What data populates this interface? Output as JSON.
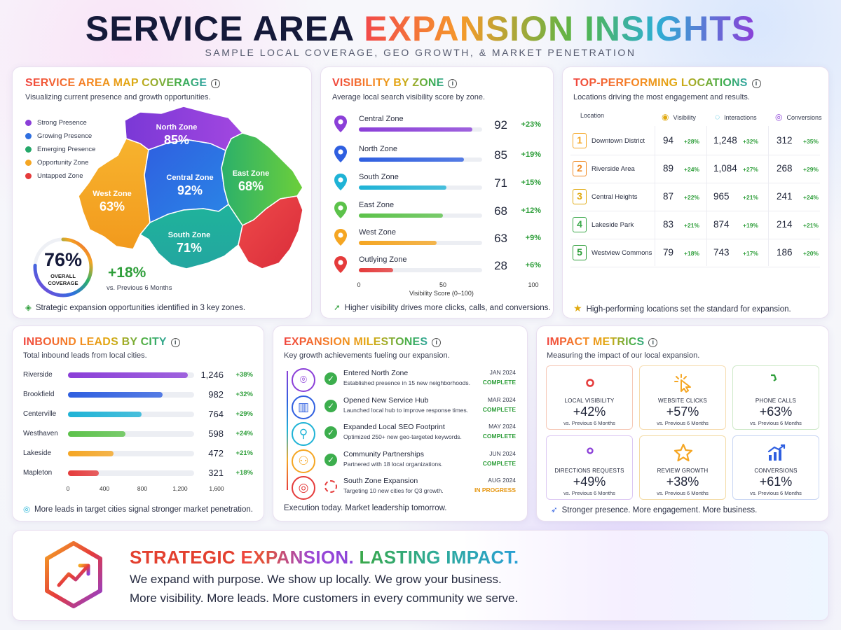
{
  "header": {
    "title_dark": "SERVICE AREA",
    "title_color": "EXPANSION INSIGHTS",
    "subtitle": "SAMPLE LOCAL COVERAGE, GEO GROWTH, & MARKET PENETRATION"
  },
  "map_card": {
    "title": "SERVICE AREA  MAP COVERAGE",
    "subtitle": "Visualizing current presence and growth opportunities.",
    "legend": [
      {
        "label": "Strong Presence",
        "color": "#8b3fd8"
      },
      {
        "label": "Growing Presence",
        "color": "#2f6fe0"
      },
      {
        "label": "Emerging Presence",
        "color": "#25a86a"
      },
      {
        "label": "Opportunity Zone",
        "color": "#f5a623"
      },
      {
        "label": "Untapped Zone",
        "color": "#e53b3b"
      }
    ],
    "zones": [
      {
        "name": "North Zone",
        "pct": "85%"
      },
      {
        "name": "West Zone",
        "pct": "63%"
      },
      {
        "name": "Central Zone",
        "pct": "92%"
      },
      {
        "name": "East Zone",
        "pct": "68%"
      },
      {
        "name": "South Zone",
        "pct": "71%"
      }
    ],
    "coverage_value": "76%",
    "coverage_fraction": 0.76,
    "coverage_label_1": "OVERALL",
    "coverage_label_2": "COVERAGE",
    "growth_value": "+18%",
    "growth_note": "vs. Previous 6 Months",
    "footer": "Strategic expansion opportunities identified in 3 key zones."
  },
  "visibility_card": {
    "title": "VISIBILITY BY ZONE",
    "subtitle": "Average local search visibility score by zone.",
    "rows": [
      {
        "zone": "Central Zone",
        "score": "92",
        "delta": "+23%",
        "value": 92,
        "color": "#8b3fd8"
      },
      {
        "zone": "North Zone",
        "score": "85",
        "delta": "+19%",
        "value": 85,
        "color": "#2f5fe0"
      },
      {
        "zone": "South Zone",
        "score": "71",
        "delta": "+15%",
        "value": 71,
        "color": "#1fb3d6"
      },
      {
        "zone": "East Zone",
        "score": "68",
        "delta": "+12%",
        "value": 68,
        "color": "#5cc24a"
      },
      {
        "zone": "West Zone",
        "score": "63",
        "delta": "+9%",
        "value": 63,
        "color": "#f5a623"
      },
      {
        "zone": "Outlying Zone",
        "score": "28",
        "delta": "+6%",
        "value": 28,
        "color": "#e53b3b"
      }
    ],
    "axis_ticks": [
      "0",
      "50",
      "100"
    ],
    "axis_label": "Visibility Score (0–100)",
    "footer": "Higher visibility drives more clicks, calls, and conversions."
  },
  "locations_card": {
    "title": "TOP-PERFORMING LOCATIONS",
    "subtitle": "Locations driving the most engagement and results.",
    "headers": {
      "location": "Location",
      "visibility": "Visibility",
      "interactions": "Interactions",
      "conversions": "Conversions"
    },
    "rows": [
      {
        "rank": "1",
        "name": "Downtown District",
        "vis": "94",
        "vis_d": "+28%",
        "int": "1,248",
        "int_d": "+32%",
        "conv": "312",
        "conv_d": "+35%",
        "color": "#f5a623"
      },
      {
        "rank": "2",
        "name": "Riverside Area",
        "vis": "89",
        "vis_d": "+24%",
        "int": "1,084",
        "int_d": "+27%",
        "conv": "268",
        "conv_d": "+29%",
        "color": "#f08a24"
      },
      {
        "rank": "3",
        "name": "Central Heights",
        "vis": "87",
        "vis_d": "+22%",
        "int": "965",
        "int_d": "+21%",
        "conv": "241",
        "conv_d": "+24%",
        "color": "#e0a90f"
      },
      {
        "rank": "4",
        "name": "Lakeside Park",
        "vis": "83",
        "vis_d": "+21%",
        "int": "874",
        "int_d": "+19%",
        "conv": "214",
        "conv_d": "+21%",
        "color": "#3aa84a"
      },
      {
        "rank": "5",
        "name": "Westview Commons",
        "vis": "79",
        "vis_d": "+18%",
        "int": "743",
        "int_d": "+17%",
        "conv": "186",
        "conv_d": "+20%",
        "color": "#2e9e3a"
      }
    ],
    "footer": "High-performing locations set the standard for expansion."
  },
  "leads_card": {
    "title": "INBOUND LEADS BY CITY",
    "subtitle": "Total inbound leads from local cities.",
    "rows": [
      {
        "city": "Riverside",
        "val": "1,246",
        "delta": "+38%",
        "value": 1246,
        "color": "#8b3fd8"
      },
      {
        "city": "Brookfield",
        "val": "982",
        "delta": "+32%",
        "value": 982,
        "color": "#2f5fe0"
      },
      {
        "city": "Centerville",
        "val": "764",
        "delta": "+29%",
        "value": 764,
        "color": "#1fb3d6"
      },
      {
        "city": "Westhaven",
        "val": "598",
        "delta": "+24%",
        "value": 598,
        "color": "#5cc24a"
      },
      {
        "city": "Lakeside",
        "val": "472",
        "delta": "+21%",
        "value": 472,
        "color": "#f5a623"
      },
      {
        "city": "Mapleton",
        "val": "321",
        "delta": "+18%",
        "value": 321,
        "color": "#e53b3b"
      }
    ],
    "axis_ticks": [
      "0",
      "400",
      "800",
      "1,200",
      "1,600"
    ],
    "footer": "More leads in target cities signal stronger market penetration."
  },
  "milestones_card": {
    "title": "EXPANSION MILESTONES",
    "subtitle": "Key growth achievements fueling our expansion.",
    "items": [
      {
        "title": "Entered North Zone",
        "desc": "Established presence in 15 new neighborhoods.",
        "date": "JAN 2024",
        "status": "COMPLETE",
        "icon": "map-pin-icon",
        "color": "#8b3fd8"
      },
      {
        "title": "Opened New Service Hub",
        "desc": "Launched local hub to improve response times.",
        "date": "MAR 2024",
        "status": "COMPLETE",
        "icon": "building-icon",
        "color": "#2f5fe0"
      },
      {
        "title": "Expanded Local SEO Footprint",
        "desc": "Optimized 250+ new geo-targeted keywords.",
        "date": "MAY 2024",
        "status": "COMPLETE",
        "icon": "magnifier-icon",
        "color": "#1fb3d6"
      },
      {
        "title": "Community Partnerships",
        "desc": "Partnered with 18 local organizations.",
        "date": "JUN 2024",
        "status": "COMPLETE",
        "icon": "people-icon",
        "color": "#f5a623"
      },
      {
        "title": "South Zone Expansion",
        "desc": "Targeting 10 new cities for Q3 growth.",
        "date": "AUG 2024",
        "status": "IN PROGRESS",
        "icon": "target-icon",
        "color": "#e53b3b"
      }
    ],
    "footer": "Execution today. Market leadership tomorrow."
  },
  "impact_card": {
    "title": "IMPACT METRICS",
    "subtitle": "Measuring the impact of our local expansion.",
    "tiles": [
      {
        "label": "LOCAL VISIBILITY",
        "value": "+42%",
        "cmp": "vs. Previous 6 Months",
        "icon": "eye-icon",
        "color": "#e53b3b"
      },
      {
        "label": "WEBSITE CLICKS",
        "value": "+57%",
        "cmp": "vs. Previous 6 Months",
        "icon": "cursor-click-icon",
        "color": "#f5a623"
      },
      {
        "label": "PHONE CALLS",
        "value": "+63%",
        "cmp": "vs. Previous 6 Months",
        "icon": "phone-icon",
        "color": "#2e9e3a"
      },
      {
        "label": "DIRECTIONS REQUESTS",
        "value": "+49%",
        "cmp": "vs. Previous 6 Months",
        "icon": "map-pin-icon",
        "color": "#8b3fd8"
      },
      {
        "label": "REVIEW GROWTH",
        "value": "+38%",
        "cmp": "vs. Previous 6 Months",
        "icon": "star-icon",
        "color": "#f5a623"
      },
      {
        "label": "CONVERSIONS",
        "value": "+61%",
        "cmp": "vs. Previous 6 Months",
        "icon": "bar-chart-icon",
        "color": "#2f5fe0"
      }
    ],
    "footer": "Stronger presence. More engagement. More business."
  },
  "banner": {
    "title_a": "STRATEGIC ",
    "title_b": "EXPANSION. ",
    "title_c": "LASTING IMPACT.",
    "line1": "We expand with purpose. We show up locally. We grow your business.",
    "line2": "More visibility. More leads. More customers in every community we serve."
  }
}
